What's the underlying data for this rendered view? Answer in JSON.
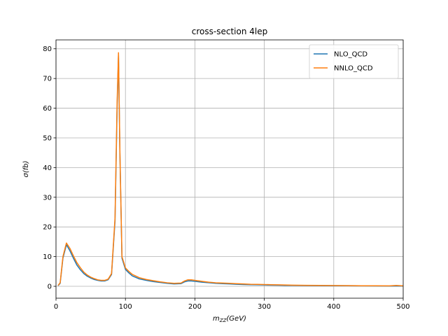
{
  "chart_data": {
    "type": "line",
    "title": "cross-section 4lep",
    "xlabel_base": "m",
    "xlabel_sub": "ZZ",
    "xlabel_unit": "(GeV)",
    "ylabel": "σ(fb)",
    "xlim": [
      0,
      500
    ],
    "ylim": [
      -4,
      83
    ],
    "xticks": [
      0,
      100,
      200,
      300,
      400,
      500
    ],
    "yticks": [
      0,
      10,
      20,
      30,
      40,
      50,
      60,
      70,
      80
    ],
    "grid": true,
    "legend_position": "top-right",
    "series": [
      {
        "name": "NLO_QCD",
        "color": "#1f77b4",
        "x": [
          3,
          6,
          10,
          15,
          20,
          25,
          30,
          35,
          40,
          45,
          50,
          55,
          60,
          65,
          70,
          75,
          80,
          85,
          88,
          90,
          92,
          95,
          100,
          105,
          110,
          120,
          130,
          140,
          150,
          160,
          170,
          180,
          185,
          190,
          195,
          200,
          210,
          220,
          230,
          240,
          250,
          260,
          270,
          280,
          290,
          300,
          310,
          320,
          330,
          340,
          350,
          360,
          380,
          400,
          420,
          440,
          460,
          480,
          490,
          500
        ],
        "y": [
          0.2,
          1.0,
          9.5,
          14.0,
          12.0,
          9.5,
          7.2,
          5.6,
          4.3,
          3.4,
          2.8,
          2.3,
          2.0,
          1.8,
          1.8,
          2.2,
          4.0,
          22.0,
          60.0,
          78.0,
          45.0,
          9.5,
          5.7,
          4.5,
          3.5,
          2.5,
          2.0,
          1.6,
          1.3,
          1.0,
          0.8,
          0.9,
          1.5,
          1.8,
          1.8,
          1.7,
          1.4,
          1.2,
          1.0,
          0.9,
          0.8,
          0.7,
          0.6,
          0.55,
          0.5,
          0.45,
          0.4,
          0.35,
          0.3,
          0.3,
          0.28,
          0.25,
          0.22,
          0.2,
          0.18,
          0.15,
          0.13,
          0.1,
          0.1,
          0.1
        ]
      },
      {
        "name": "NNLO_QCD",
        "color": "#ff7f0e",
        "x": [
          3,
          6,
          10,
          15,
          20,
          25,
          30,
          35,
          40,
          45,
          50,
          55,
          60,
          65,
          70,
          75,
          80,
          85,
          88,
          90,
          92,
          95,
          100,
          105,
          110,
          120,
          130,
          140,
          150,
          160,
          170,
          180,
          185,
          190,
          195,
          200,
          210,
          220,
          230,
          240,
          250,
          260,
          270,
          280,
          290,
          300,
          310,
          320,
          330,
          340,
          350,
          360,
          380,
          400,
          420,
          440,
          460,
          480,
          490,
          500
        ],
        "y": [
          0.3,
          1.2,
          10.0,
          14.6,
          12.8,
          10.3,
          8.0,
          6.3,
          4.8,
          3.8,
          3.1,
          2.6,
          2.2,
          2.0,
          2.0,
          2.4,
          4.3,
          23.0,
          62.0,
          78.7,
          46.0,
          10.0,
          6.2,
          5.0,
          4.0,
          2.9,
          2.3,
          1.9,
          1.5,
          1.2,
          1.0,
          1.1,
          1.8,
          2.2,
          2.2,
          2.0,
          1.7,
          1.4,
          1.2,
          1.1,
          1.0,
          0.9,
          0.8,
          0.7,
          0.65,
          0.6,
          0.55,
          0.5,
          0.45,
          0.4,
          0.35,
          0.33,
          0.3,
          0.27,
          0.25,
          0.2,
          0.18,
          0.15,
          0.3,
          0.15
        ]
      }
    ]
  }
}
